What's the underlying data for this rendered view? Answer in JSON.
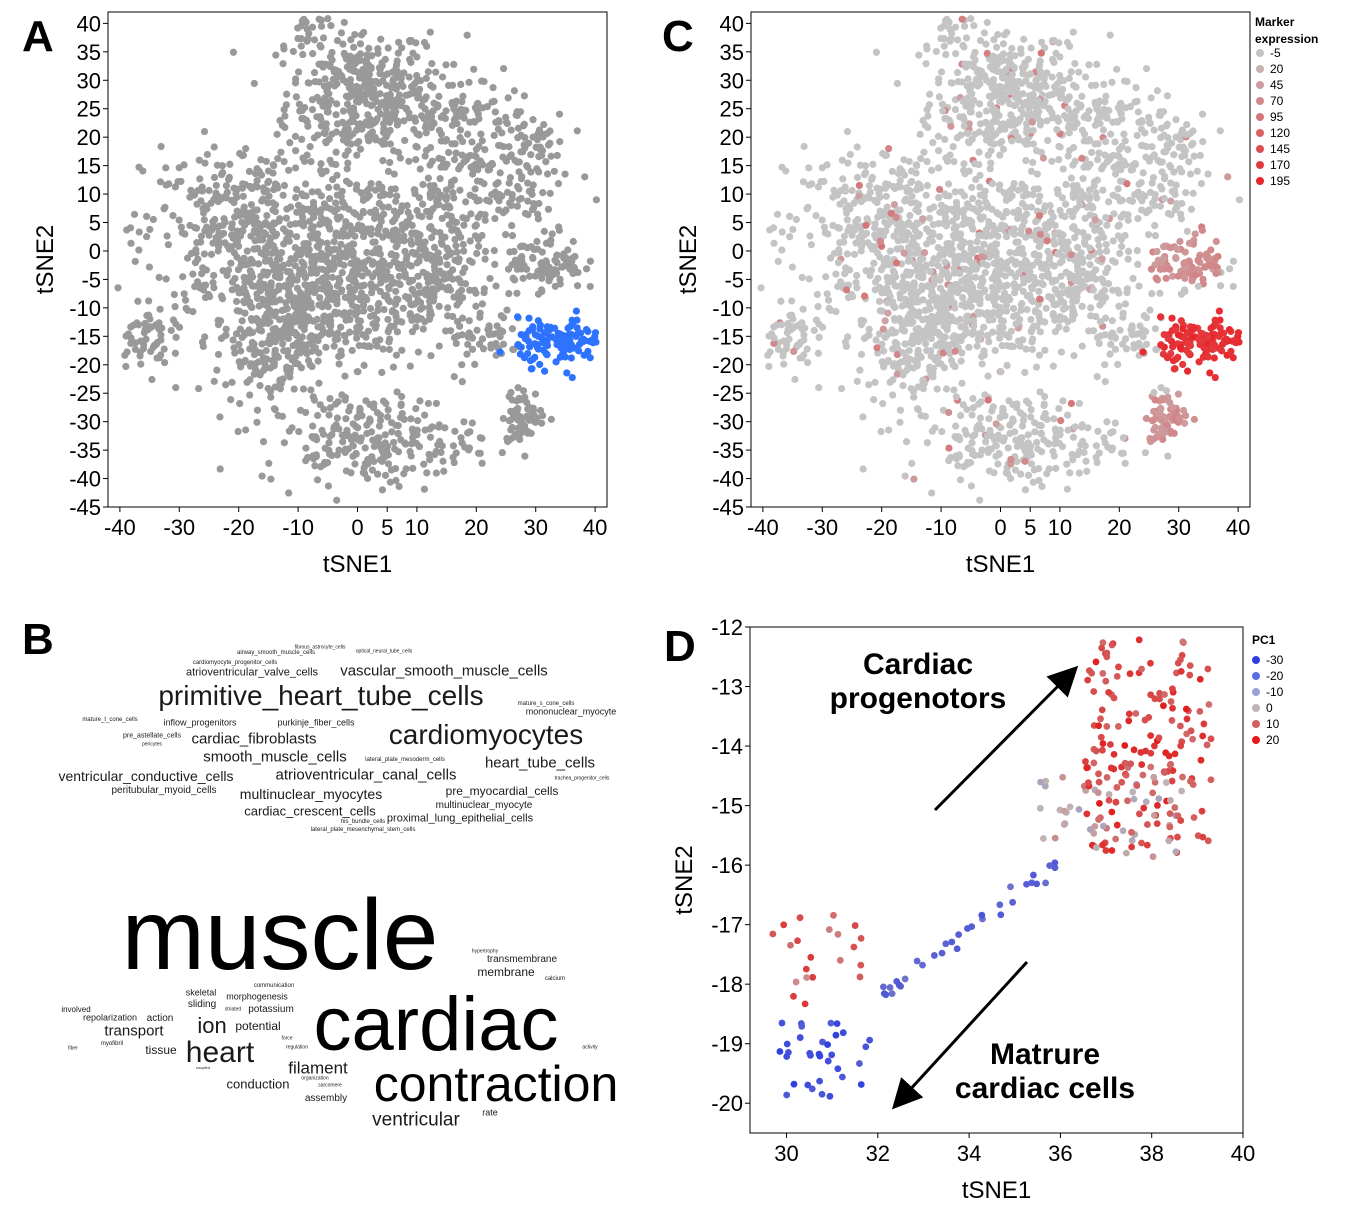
{
  "panels": {
    "A": "A",
    "B": "B",
    "C": "C",
    "D": "D"
  },
  "colors": {
    "grey_points": "#999999",
    "highlight_blue": "#2e73ff",
    "expr_low": "#c4c4c4",
    "expr_high": "#e8252a",
    "pc1_low": "#2f3fe0",
    "pc1_mid": "#c0b4b4",
    "pc1_high": "#e21b1b"
  },
  "chart_data": [
    {
      "id": "A",
      "type": "scatter",
      "xlabel": "tSNE1",
      "ylabel": "tSNE2",
      "xlim": [
        -42,
        42
      ],
      "ylim": [
        -45,
        42
      ],
      "xticks": [
        -40,
        -30,
        -20,
        -10,
        0,
        5,
        10,
        20,
        30,
        40
      ],
      "yticks": [
        40,
        35,
        30,
        25,
        20,
        15,
        10,
        5,
        0,
        -5,
        -10,
        -15,
        -20,
        -25,
        -30,
        -35,
        -40,
        -45
      ],
      "series": [
        {
          "highlight": false
        },
        {
          "highlight": true
        }
      ],
      "clusters": [
        {
          "x": 0,
          "y": 28,
          "sx": 6,
          "sy": 6,
          "n": 260
        },
        {
          "x": 5,
          "y": 25,
          "sx": 7,
          "sy": 5,
          "n": 160
        },
        {
          "x": -8,
          "y": 38,
          "sx": 2,
          "sy": 2,
          "n": 25
        },
        {
          "x": -18,
          "y": 3,
          "sx": 9,
          "sy": 8,
          "n": 460
        },
        {
          "x": 2,
          "y": 0,
          "sx": 9,
          "sy": 7,
          "n": 360
        },
        {
          "x": 12,
          "y": -5,
          "sx": 5,
          "sy": 6,
          "n": 160
        },
        {
          "x": -14,
          "y": -15,
          "sx": 5,
          "sy": 6,
          "n": 220
        },
        {
          "x": -5,
          "y": -10,
          "sx": 8,
          "sy": 6,
          "n": 230
        },
        {
          "x": 2,
          "y": -33,
          "sx": 9,
          "sy": 4,
          "n": 240
        },
        {
          "x": 27,
          "y": 16,
          "sx": 4,
          "sy": 7,
          "n": 130
        },
        {
          "x": 17,
          "y": 20,
          "sx": 4,
          "sy": 5,
          "n": 90
        },
        {
          "x": 32,
          "y": -2,
          "sx": 3,
          "sy": 2.5,
          "n": 90
        },
        {
          "x": 28,
          "y": -29,
          "sx": 1.8,
          "sy": 2.3,
          "n": 70
        },
        {
          "x": 22,
          "y": -15,
          "sx": 3,
          "sy": 2.5,
          "n": 50
        },
        {
          "x": -36,
          "y": -15,
          "sx": 2.2,
          "sy": 2.5,
          "n": 55
        },
        {
          "x": 15,
          "y": 8,
          "sx": 6,
          "sy": 4,
          "n": 80
        },
        {
          "x": 34,
          "y": -16,
          "sx": 3.5,
          "sy": 2,
          "n": 120,
          "hl": true
        }
      ]
    },
    {
      "id": "C",
      "type": "scatter",
      "xlabel": "tSNE1",
      "ylabel": "tSNE2",
      "xlim": [
        -42,
        42
      ],
      "ylim": [
        -45,
        42
      ],
      "xticks": [
        -40,
        -30,
        -20,
        -10,
        0,
        5,
        10,
        20,
        30,
        40
      ],
      "yticks": [
        40,
        35,
        30,
        25,
        20,
        15,
        10,
        5,
        0,
        -5,
        -10,
        -15,
        -20,
        -25,
        -30,
        -35,
        -40,
        -45
      ],
      "legend_title": [
        "Marker",
        "expression"
      ],
      "legend_values": [
        "-5",
        "20",
        "45",
        "70",
        "95",
        "120",
        "145",
        "170",
        "195"
      ],
      "legend_placement": "top-right"
    },
    {
      "id": "D",
      "type": "scatter",
      "xlabel": "tSNE1",
      "ylabel": "tSNE2",
      "xlim": [
        29.2,
        40
      ],
      "ylim": [
        -20.5,
        -12
      ],
      "xticks": [
        30,
        32,
        34,
        36,
        38,
        40
      ],
      "yticks": [
        -12,
        -13,
        -14,
        -15,
        -16,
        -17,
        -18,
        -19,
        -20
      ],
      "legend_title": "PC1",
      "legend_values": [
        "-30",
        "-20",
        "-10",
        "0",
        "10",
        "20"
      ],
      "legend_placement": "top-right",
      "annotations": [
        {
          "text": [
            "Cardiac",
            "progenotors"
          ]
        },
        {
          "text": [
            "Matrure",
            "cardiac cells"
          ]
        }
      ]
    }
  ],
  "wordcloud_top": [
    {
      "t": "primitive_heart_tube_cells",
      "x": 321,
      "y": 696,
      "s": 28
    },
    {
      "t": "cardiomyocytes",
      "x": 486,
      "y": 735,
      "s": 28
    },
    {
      "t": "vascular_smooth_muscle_cells",
      "x": 444,
      "y": 671,
      "s": 15
    },
    {
      "t": "atrioventricular_valve_cells",
      "x": 252,
      "y": 673,
      "s": 11
    },
    {
      "t": "cardiomyocyte_progenitor_cells",
      "x": 235,
      "y": 663,
      "s": 6
    },
    {
      "t": "airway_smooth_muscle_cells",
      "x": 276,
      "y": 653,
      "s": 6
    },
    {
      "t": "fibrous_astrocyte_cells",
      "x": 320,
      "y": 648,
      "s": 5
    },
    {
      "t": "cardiac_fibroblasts",
      "x": 254,
      "y": 739,
      "s": 15
    },
    {
      "t": "smooth_muscle_cells",
      "x": 275,
      "y": 757,
      "s": 15
    },
    {
      "t": "heart_tube_cells",
      "x": 540,
      "y": 763,
      "s": 15
    },
    {
      "t": "atrioventricular_canal_cells",
      "x": 366,
      "y": 775,
      "s": 15
    },
    {
      "t": "ventricular_conductive_cells",
      "x": 146,
      "y": 776,
      "s": 14
    },
    {
      "t": "multinuclear_myocytes",
      "x": 311,
      "y": 794,
      "s": 14
    },
    {
      "t": "pre_myocardial_cells",
      "x": 502,
      "y": 791,
      "s": 12
    },
    {
      "t": "cardiac_crescent_cells",
      "x": 310,
      "y": 811,
      "s": 13
    },
    {
      "t": "multinuclear_myocyte",
      "x": 484,
      "y": 806,
      "s": 10
    },
    {
      "t": "proximal_lung_epithelial_cells",
      "x": 460,
      "y": 819,
      "s": 11
    },
    {
      "t": "peritubular_myoid_cells",
      "x": 164,
      "y": 791,
      "s": 10
    },
    {
      "t": "inflow_progenitors",
      "x": 200,
      "y": 723,
      "s": 9
    },
    {
      "t": "purkinje_fiber_cells",
      "x": 316,
      "y": 723,
      "s": 9
    },
    {
      "t": "mononuclear_myocyte",
      "x": 571,
      "y": 712,
      "s": 9
    },
    {
      "t": "lateral_plate_mesoderm_cells",
      "x": 405,
      "y": 760,
      "s": 6
    },
    {
      "t": "lateral_plate_mesenchymal_stem_cells",
      "x": 363,
      "y": 830,
      "s": 6
    },
    {
      "t": "his_bundle_cells",
      "x": 363,
      "y": 822,
      "s": 6
    },
    {
      "t": "pre_astellate_cells",
      "x": 152,
      "y": 736,
      "s": 7
    },
    {
      "t": "mature_t_cone_cells",
      "x": 110,
      "y": 720,
      "s": 6
    },
    {
      "t": "mature_s_cone_cells",
      "x": 546,
      "y": 704,
      "s": 6
    },
    {
      "t": "optical_neural_tube_cells",
      "x": 384,
      "y": 652,
      "s": 5
    },
    {
      "t": "trachea_progenitor_cells",
      "x": 582,
      "y": 779,
      "s": 5
    },
    {
      "t": "pericytes",
      "x": 152,
      "y": 745,
      "s": 5
    }
  ],
  "wordcloud_bottom": [
    {
      "t": "muscle",
      "x": 280,
      "y": 935,
      "s": 100
    },
    {
      "t": "cardiac",
      "x": 436,
      "y": 1025,
      "s": 76
    },
    {
      "t": "contraction",
      "x": 496,
      "y": 1084,
      "s": 50
    },
    {
      "t": "heart",
      "x": 220,
      "y": 1053,
      "s": 30
    },
    {
      "t": "ion",
      "x": 212,
      "y": 1026,
      "s": 22
    },
    {
      "t": "filament",
      "x": 318,
      "y": 1068,
      "s": 17
    },
    {
      "t": "ventricular",
      "x": 416,
      "y": 1120,
      "s": 19
    },
    {
      "t": "transport",
      "x": 134,
      "y": 1031,
      "s": 15
    },
    {
      "t": "potential",
      "x": 258,
      "y": 1026,
      "s": 12
    },
    {
      "t": "conduction",
      "x": 258,
      "y": 1084,
      "s": 13
    },
    {
      "t": "membrane",
      "x": 506,
      "y": 972,
      "s": 12
    },
    {
      "t": "transmembrane",
      "x": 522,
      "y": 960,
      "s": 10
    },
    {
      "t": "tissue",
      "x": 161,
      "y": 1050,
      "s": 12
    },
    {
      "t": "action",
      "x": 160,
      "y": 1019,
      "s": 10
    },
    {
      "t": "repolarization",
      "x": 110,
      "y": 1018,
      "s": 9
    },
    {
      "t": "involved",
      "x": 76,
      "y": 1010,
      "s": 8
    },
    {
      "t": "sliding",
      "x": 202,
      "y": 1005,
      "s": 10
    },
    {
      "t": "skeletal",
      "x": 201,
      "y": 993,
      "s": 9
    },
    {
      "t": "morphogenesis",
      "x": 257,
      "y": 997,
      "s": 9
    },
    {
      "t": "potassium",
      "x": 271,
      "y": 1010,
      "s": 10
    },
    {
      "t": "communication",
      "x": 274,
      "y": 986,
      "s": 6
    },
    {
      "t": "assembly",
      "x": 326,
      "y": 1099,
      "s": 10
    },
    {
      "t": "rate",
      "x": 490,
      "y": 1113,
      "s": 9
    },
    {
      "t": "myofibril",
      "x": 112,
      "y": 1044,
      "s": 6
    },
    {
      "t": "calcium",
      "x": 555,
      "y": 979,
      "s": 6
    },
    {
      "t": "hypertrophy",
      "x": 485,
      "y": 952,
      "s": 5
    },
    {
      "t": "striated",
      "x": 233,
      "y": 1010,
      "s": 5
    },
    {
      "t": "force",
      "x": 287,
      "y": 1039,
      "s": 5
    },
    {
      "t": "activity",
      "x": 590,
      "y": 1048,
      "s": 5
    },
    {
      "t": "fiber",
      "x": 73,
      "y": 1049,
      "s": 5
    },
    {
      "t": "organization",
      "x": 315,
      "y": 1079,
      "s": 5
    },
    {
      "t": "sarcomere",
      "x": 330,
      "y": 1086,
      "s": 5
    },
    {
      "t": "regulation",
      "x": 297,
      "y": 1048,
      "s": 5
    },
    {
      "t": "coupled",
      "x": 203,
      "y": 1068,
      "s": 4
    }
  ]
}
